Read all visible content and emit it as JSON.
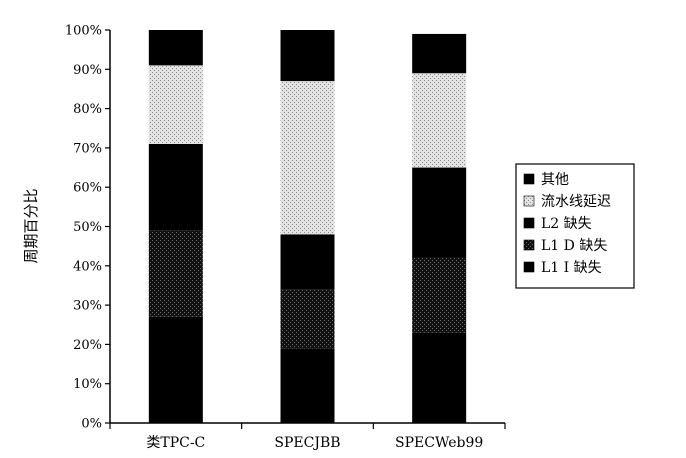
{
  "chart_data": {
    "type": "bar",
    "stacked": true,
    "percent": true,
    "categories": [
      "类TPC-C",
      "SPECJBB",
      "SPECWeb99"
    ],
    "ylabel": "周期百分比",
    "xlabel": "",
    "title": "",
    "ylim": [
      0,
      100
    ],
    "yticks": [
      "0%",
      "10%",
      "20%",
      "30%",
      "40%",
      "50%",
      "60%",
      "70%",
      "80%",
      "90%",
      "100%"
    ],
    "grid": false,
    "legend_position": "right",
    "series": [
      {
        "name": "L1 I 缺失",
        "values": [
          27,
          19,
          23
        ],
        "color": "#000000",
        "pattern": "solid"
      },
      {
        "name": "L1 D 缺失",
        "values": [
          22,
          15,
          19
        ],
        "color": "#1a1a1a",
        "pattern": "dark-dots"
      },
      {
        "name": "L2 缺失",
        "values": [
          22,
          14,
          23
        ],
        "color": "#000000",
        "pattern": "solid"
      },
      {
        "name": "流水线延迟",
        "values": [
          20,
          39,
          24
        ],
        "color": "#d9d9d9",
        "pattern": "light-dots"
      },
      {
        "name": "其他",
        "values": [
          9,
          13,
          10
        ],
        "color": "#000000",
        "pattern": "solid"
      }
    ]
  }
}
